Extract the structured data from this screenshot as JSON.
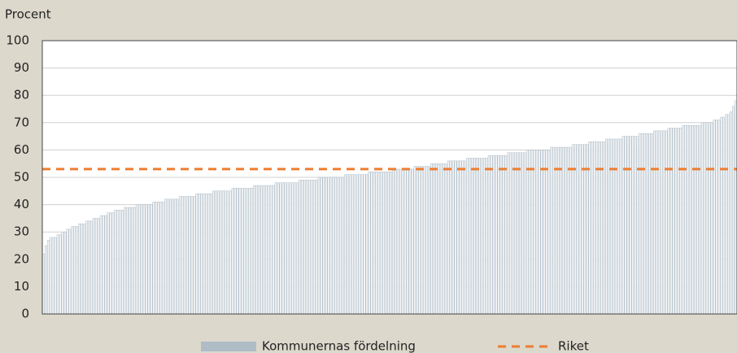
{
  "chart_data": {
    "type": "bar",
    "y_label": "Procent",
    "ylim": [
      0,
      100
    ],
    "yticks": [
      0,
      10,
      20,
      30,
      40,
      50,
      60,
      70,
      80,
      90,
      100
    ],
    "grid": true,
    "series": [
      {
        "name": "Kommunernas fördelning",
        "color": "#aebcc6",
        "values": [
          22,
          25,
          27,
          28,
          28,
          28,
          29,
          29,
          30,
          30,
          31,
          31,
          32,
          32,
          32,
          33,
          33,
          33,
          34,
          34,
          34,
          35,
          35,
          35,
          36,
          36,
          36,
          37,
          37,
          37,
          38,
          38,
          38,
          38,
          39,
          39,
          39,
          39,
          39,
          40,
          40,
          40,
          40,
          40,
          40,
          40,
          41,
          41,
          41,
          41,
          41,
          42,
          42,
          42,
          42,
          42,
          42,
          43,
          43,
          43,
          43,
          43,
          43,
          43,
          44,
          44,
          44,
          44,
          44,
          44,
          44,
          45,
          45,
          45,
          45,
          45,
          45,
          45,
          45,
          46,
          46,
          46,
          46,
          46,
          46,
          46,
          46,
          46,
          47,
          47,
          47,
          47,
          47,
          47,
          47,
          47,
          47,
          48,
          48,
          48,
          48,
          48,
          48,
          48,
          48,
          48,
          48,
          49,
          49,
          49,
          49,
          49,
          49,
          49,
          49,
          50,
          50,
          50,
          50,
          50,
          50,
          50,
          50,
          50,
          50,
          50,
          51,
          51,
          51,
          51,
          51,
          51,
          51,
          51,
          51,
          51,
          52,
          52,
          52,
          52,
          52,
          52,
          52,
          52,
          52,
          52,
          53,
          53,
          53,
          53,
          53,
          53,
          53,
          53,
          53,
          54,
          54,
          54,
          54,
          54,
          54,
          54,
          55,
          55,
          55,
          55,
          55,
          55,
          55,
          56,
          56,
          56,
          56,
          56,
          56,
          56,
          56,
          57,
          57,
          57,
          57,
          57,
          57,
          57,
          57,
          57,
          58,
          58,
          58,
          58,
          58,
          58,
          58,
          58,
          59,
          59,
          59,
          59,
          59,
          59,
          59,
          59,
          60,
          60,
          60,
          60,
          60,
          60,
          60,
          60,
          60,
          60,
          61,
          61,
          61,
          61,
          61,
          61,
          61,
          61,
          61,
          62,
          62,
          62,
          62,
          62,
          62,
          62,
          63,
          63,
          63,
          63,
          63,
          63,
          63,
          64,
          64,
          64,
          64,
          64,
          64,
          64,
          65,
          65,
          65,
          65,
          65,
          65,
          65,
          66,
          66,
          66,
          66,
          66,
          66,
          67,
          67,
          67,
          67,
          67,
          67,
          68,
          68,
          68,
          68,
          68,
          68,
          69,
          69,
          69,
          69,
          69,
          69,
          69,
          69,
          70,
          70,
          70,
          70,
          70,
          71,
          71,
          71,
          72,
          72,
          73,
          73,
          74,
          76,
          78
        ]
      }
    ],
    "reference": {
      "name": "Riket",
      "value": 53,
      "color": "#ed7d31"
    }
  }
}
